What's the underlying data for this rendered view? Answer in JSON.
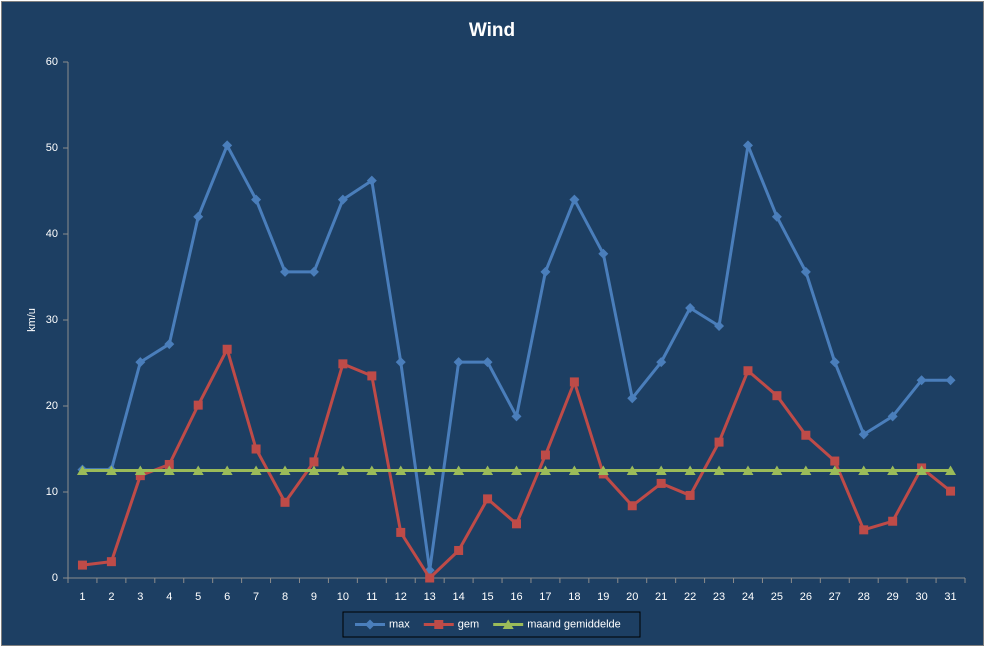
{
  "chart_data": {
    "type": "line",
    "title": "Wind",
    "y_label": "km/u",
    "categories": [
      "1",
      "2",
      "3",
      "4",
      "5",
      "6",
      "7",
      "8",
      "9",
      "10",
      "11",
      "12",
      "13",
      "14",
      "15",
      "16",
      "17",
      "18",
      "19",
      "20",
      "21",
      "22",
      "23",
      "24",
      "25",
      "26",
      "27",
      "28",
      "29",
      "30",
      "31"
    ],
    "series": [
      {
        "name": "max",
        "color": "#4a7ebb",
        "marker": "diamond",
        "values": [
          12.6,
          12.6,
          25.1,
          27.2,
          42,
          50.3,
          44,
          35.6,
          35.6,
          44,
          46.2,
          25.1,
          0.9,
          25.1,
          25.1,
          18.8,
          35.6,
          44,
          37.7,
          20.9,
          25.1,
          31.4,
          29.3,
          50.3,
          42,
          35.6,
          25.1,
          16.7,
          18.8,
          23,
          23
        ]
      },
      {
        "name": "gem",
        "color": "#be4b48",
        "marker": "square",
        "values": [
          1.5,
          1.9,
          11.9,
          13.2,
          20.1,
          26.6,
          15,
          8.8,
          13.5,
          24.9,
          23.5,
          5.3,
          0,
          3.2,
          9.2,
          6.3,
          14.3,
          22.8,
          12.1,
          8.4,
          11,
          9.6,
          15.8,
          24.1,
          21.2,
          16.6,
          13.6,
          5.6,
          6.6,
          12.8,
          10.1
        ]
      },
      {
        "name": "maand gemiddelde",
        "color": "#9bbb59",
        "marker": "triangle",
        "values": [
          12.5,
          12.5,
          12.5,
          12.5,
          12.5,
          12.5,
          12.5,
          12.5,
          12.5,
          12.5,
          12.5,
          12.5,
          12.5,
          12.5,
          12.5,
          12.5,
          12.5,
          12.5,
          12.5,
          12.5,
          12.5,
          12.5,
          12.5,
          12.5,
          12.5,
          12.5,
          12.5,
          12.5,
          12.5,
          12.5,
          12.5
        ]
      }
    ],
    "ylim": [
      0,
      60
    ],
    "yticks": [
      0,
      10,
      20,
      30,
      40,
      50,
      60
    ],
    "grid": false,
    "legend": "bottom"
  }
}
